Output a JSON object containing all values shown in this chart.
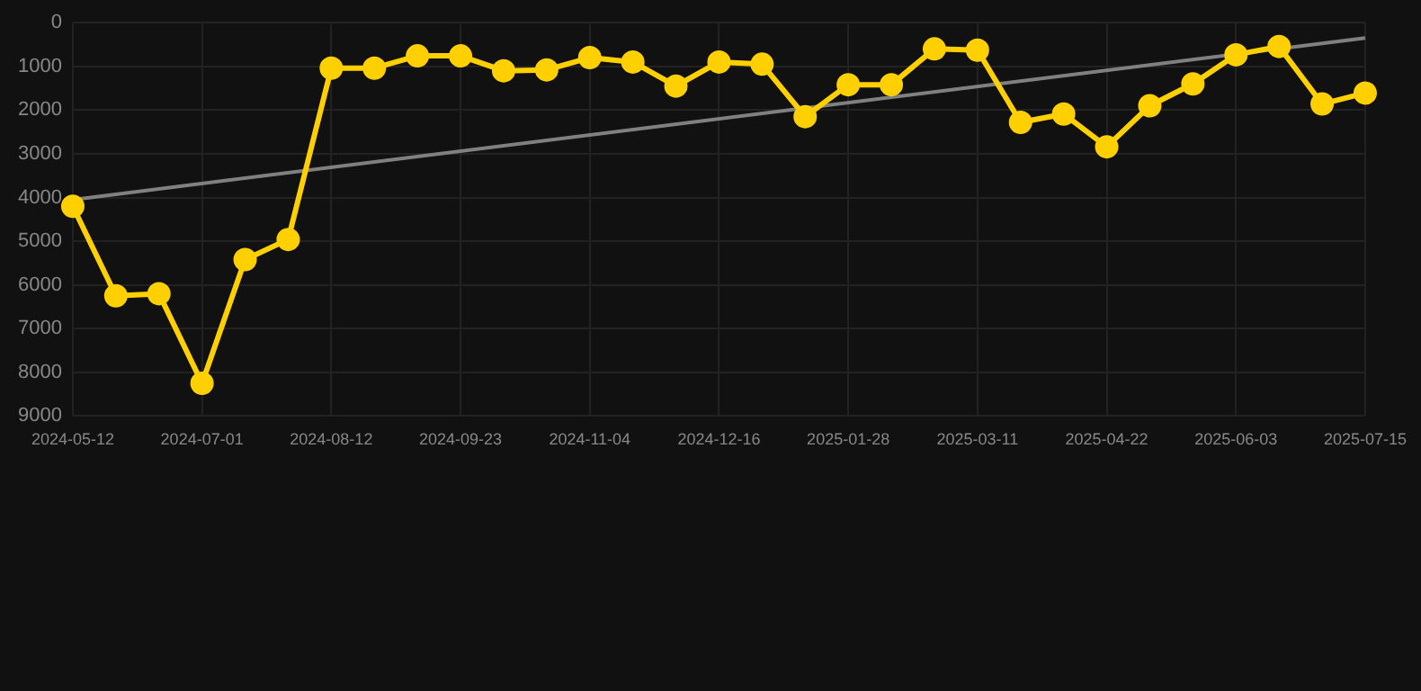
{
  "chart_data": {
    "type": "line",
    "categories": [
      "2024-05-12",
      null,
      null,
      "2024-07-01",
      null,
      null,
      "2024-08-12",
      null,
      null,
      "2024-09-23",
      null,
      null,
      "2024-11-04",
      null,
      null,
      "2024-12-16",
      null,
      null,
      "2025-01-28",
      null,
      null,
      "2025-03-11",
      null,
      null,
      "2025-04-22",
      null,
      null,
      "2025-06-03",
      null,
      null,
      "2025-07-15"
    ],
    "series": [
      {
        "color": "#ffd000",
        "values": [
          4200,
          6250,
          6200,
          8250,
          5420,
          4960,
          1040,
          1040,
          760,
          760,
          1100,
          1080,
          800,
          900,
          1450,
          900,
          950,
          2150,
          1420,
          1420,
          600,
          630,
          2280,
          2090,
          2840,
          1900,
          1400,
          735,
          545,
          1860,
          1610
        ]
      },
      {
        "type": "line",
        "color": "#808080",
        "marker": "none",
        "values": [
          4050,
          null,
          null,
          null,
          null,
          null,
          null,
          null,
          null,
          null,
          null,
          null,
          null,
          null,
          null,
          null,
          null,
          null,
          null,
          null,
          null,
          null,
          null,
          null,
          null,
          null,
          null,
          null,
          null,
          null,
          350
        ]
      }
    ],
    "ylim": [
      9000,
      0
    ],
    "yticks": [
      0,
      1000,
      2000,
      3000,
      4000,
      5000,
      6000,
      7000,
      8000,
      9000
    ],
    "grid": true,
    "marker": "circle",
    "line_style": "solid"
  }
}
